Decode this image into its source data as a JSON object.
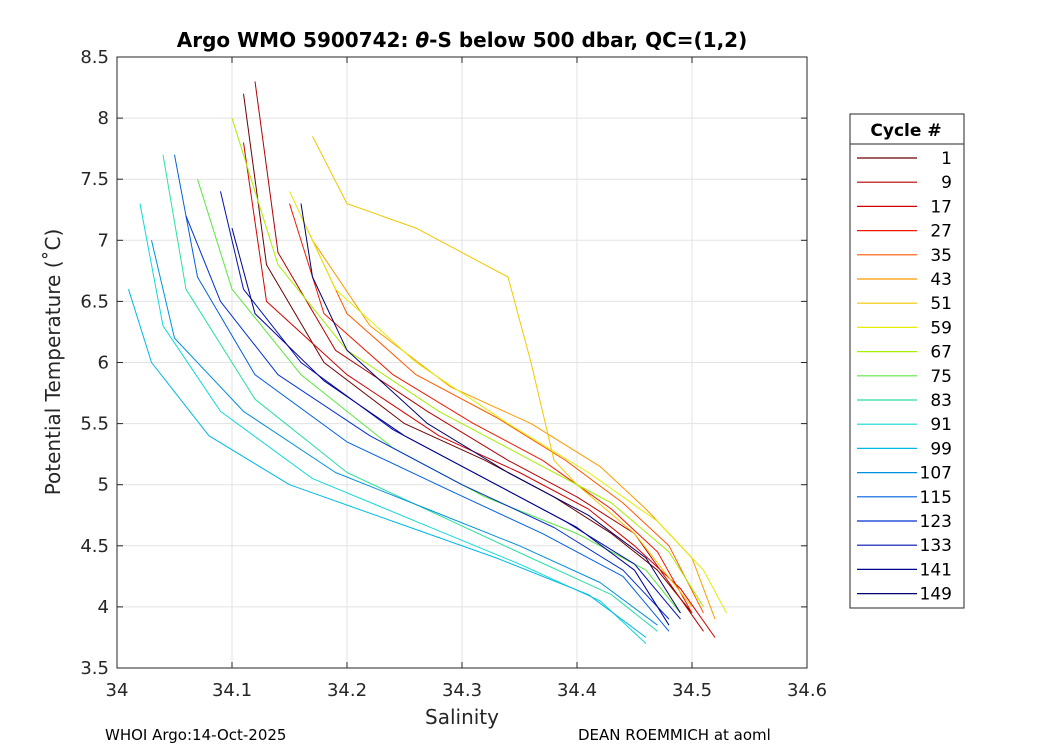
{
  "chart_data": {
    "type": "line",
    "title_prefix": "Argo WMO 5900742: ",
    "title_theta": "θ",
    "title_suffix": "-S below 500 dbar,  QC=(1,2)",
    "xlabel": "Salinity",
    "ylabel": "Potential Temperature (˚C)",
    "xlim": [
      34.0,
      34.6
    ],
    "ylim": [
      3.5,
      8.5
    ],
    "xticks": [
      "34",
      "34.1",
      "34.2",
      "34.3",
      "34.4",
      "34.5",
      "34.6"
    ],
    "yticks": [
      "3.5",
      "4",
      "4.5",
      "5",
      "5.5",
      "6",
      "6.5",
      "7",
      "7.5",
      "8",
      "8.5"
    ],
    "grid": true,
    "legend_position": "right",
    "legend_title": "Cycle #",
    "legend_entries": [
      {
        "label": "1",
        "color": "#6e0000"
      },
      {
        "label": "9",
        "color": "#b40000"
      },
      {
        "label": "17",
        "color": "#d60000"
      },
      {
        "label": "27",
        "color": "#ee1a00"
      },
      {
        "label": "35",
        "color": "#ff5a00"
      },
      {
        "label": "43",
        "color": "#ff9900"
      },
      {
        "label": "51",
        "color": "#f0c800"
      },
      {
        "label": "59",
        "color": "#e0f000"
      },
      {
        "label": "67",
        "color": "#a8ee00"
      },
      {
        "label": "75",
        "color": "#5ae840"
      },
      {
        "label": "83",
        "color": "#2ae0a0"
      },
      {
        "label": "91",
        "color": "#10d8d8"
      },
      {
        "label": "99",
        "color": "#00b8e8"
      },
      {
        "label": "107",
        "color": "#0090e0"
      },
      {
        "label": "115",
        "color": "#0060e0"
      },
      {
        "label": "123",
        "color": "#0030d0"
      },
      {
        "label": "133",
        "color": "#0010b0"
      },
      {
        "label": "141",
        "color": "#000090"
      },
      {
        "label": "149",
        "color": "#00006e"
      }
    ],
    "series": [
      {
        "name": "1",
        "color": "#6e0000",
        "x": [
          34.11,
          34.13,
          34.18,
          34.25,
          34.32,
          34.38,
          34.43,
          34.47,
          34.5
        ],
        "y": [
          8.2,
          6.8,
          6.0,
          5.5,
          5.2,
          4.9,
          4.6,
          4.3,
          3.95
        ]
      },
      {
        "name": "9",
        "color": "#b40000",
        "x": [
          34.12,
          34.14,
          34.19,
          34.27,
          34.34,
          34.4,
          34.45,
          34.48,
          34.51
        ],
        "y": [
          8.3,
          6.9,
          6.1,
          5.6,
          5.2,
          4.9,
          4.6,
          4.2,
          3.8
        ]
      },
      {
        "name": "17",
        "color": "#d60000",
        "x": [
          34.11,
          34.13,
          34.2,
          34.28,
          34.35,
          34.41,
          34.45,
          34.49,
          34.52
        ],
        "y": [
          7.8,
          6.5,
          5.9,
          5.4,
          5.1,
          4.8,
          4.5,
          4.15,
          3.75
        ]
      },
      {
        "name": "27",
        "color": "#ee1a00",
        "x": [
          34.15,
          34.18,
          34.24,
          34.31,
          34.37,
          34.43,
          34.47,
          34.5
        ],
        "y": [
          7.3,
          6.4,
          5.9,
          5.5,
          5.2,
          4.8,
          4.45,
          3.95
        ]
      },
      {
        "name": "35",
        "color": "#ff5a00",
        "x": [
          34.16,
          34.2,
          34.26,
          34.33,
          34.39,
          34.44,
          34.48,
          34.51
        ],
        "y": [
          7.2,
          6.4,
          5.9,
          5.55,
          5.2,
          4.85,
          4.5,
          3.95
        ]
      },
      {
        "name": "43",
        "color": "#ff9900",
        "x": [
          34.17,
          34.22,
          34.29,
          34.36,
          34.42,
          34.46,
          34.5,
          34.52
        ],
        "y": [
          7.0,
          6.3,
          5.8,
          5.5,
          5.15,
          4.8,
          4.4,
          3.9
        ]
      },
      {
        "name": "51",
        "color": "#f0c800",
        "x": [
          34.17,
          34.2,
          34.26,
          34.34,
          34.36,
          34.37,
          34.38,
          34.4,
          34.45,
          34.5
        ],
        "y": [
          7.85,
          7.3,
          7.1,
          6.7,
          6.0,
          5.6,
          5.2,
          5.0,
          4.6,
          4.0
        ]
      },
      {
        "name": "59",
        "color": "#e0f000",
        "x": [
          34.15,
          34.19,
          34.26,
          34.34,
          34.41,
          34.47,
          34.51,
          34.53
        ],
        "y": [
          7.4,
          6.6,
          6.0,
          5.5,
          5.1,
          4.7,
          4.3,
          3.95
        ]
      },
      {
        "name": "67",
        "color": "#a8ee00",
        "x": [
          34.1,
          34.14,
          34.2,
          34.28,
          34.36,
          34.43,
          34.48,
          34.51
        ],
        "y": [
          8.0,
          6.8,
          6.1,
          5.6,
          5.2,
          4.85,
          4.45,
          4.0
        ]
      },
      {
        "name": "75",
        "color": "#5ae840",
        "x": [
          34.07,
          34.1,
          34.16,
          34.24,
          34.32,
          34.4,
          34.46,
          34.49
        ],
        "y": [
          7.5,
          6.6,
          5.9,
          5.3,
          4.9,
          4.6,
          4.3,
          3.95
        ]
      },
      {
        "name": "83",
        "color": "#2ae0a0",
        "x": [
          34.04,
          34.06,
          34.12,
          34.2,
          34.28,
          34.36,
          34.43,
          34.47
        ],
        "y": [
          7.7,
          6.6,
          5.7,
          5.1,
          4.75,
          4.4,
          4.1,
          3.8
        ]
      },
      {
        "name": "91",
        "color": "#10d8d8",
        "x": [
          34.02,
          34.04,
          34.09,
          34.17,
          34.26,
          34.35,
          34.42,
          34.46
        ],
        "y": [
          7.3,
          6.3,
          5.6,
          5.05,
          4.7,
          4.35,
          4.05,
          3.7
        ]
      },
      {
        "name": "99",
        "color": "#00b8e8",
        "x": [
          34.01,
          34.03,
          34.08,
          34.15,
          34.24,
          34.33,
          34.41,
          34.46
        ],
        "y": [
          6.6,
          6.0,
          5.4,
          5.0,
          4.7,
          4.4,
          4.1,
          3.75
        ]
      },
      {
        "name": "107",
        "color": "#0090e0",
        "x": [
          34.03,
          34.05,
          34.11,
          34.19,
          34.27,
          34.35,
          34.42,
          34.47
        ],
        "y": [
          7.0,
          6.2,
          5.6,
          5.1,
          4.8,
          4.5,
          4.2,
          3.85
        ]
      },
      {
        "name": "115",
        "color": "#0060e0",
        "x": [
          34.05,
          34.07,
          34.12,
          34.2,
          34.29,
          34.37,
          34.44,
          34.48
        ],
        "y": [
          7.7,
          6.7,
          5.9,
          5.35,
          4.95,
          4.6,
          4.25,
          3.8
        ]
      },
      {
        "name": "123",
        "color": "#0030d0",
        "x": [
          34.06,
          34.09,
          34.14,
          34.22,
          34.3,
          34.38,
          34.44,
          34.48
        ],
        "y": [
          7.2,
          6.5,
          5.9,
          5.4,
          5.0,
          4.65,
          4.3,
          3.9
        ]
      },
      {
        "name": "133",
        "color": "#0010b0",
        "x": [
          34.09,
          34.11,
          34.16,
          34.24,
          34.32,
          34.39,
          34.45,
          34.49
        ],
        "y": [
          7.4,
          6.6,
          6.0,
          5.45,
          5.05,
          4.7,
          4.35,
          3.9
        ]
      },
      {
        "name": "141",
        "color": "#000090",
        "x": [
          34.1,
          34.12,
          34.18,
          34.25,
          34.33,
          34.4,
          34.45,
          34.48
        ],
        "y": [
          7.1,
          6.4,
          5.85,
          5.4,
          5.0,
          4.65,
          4.3,
          3.85
        ]
      },
      {
        "name": "149",
        "color": "#00006e",
        "x": [
          34.16,
          34.17,
          34.2,
          34.27,
          34.34,
          34.41,
          34.46,
          34.49
        ],
        "y": [
          7.3,
          6.7,
          6.1,
          5.5,
          5.1,
          4.75,
          4.4,
          3.95
        ]
      }
    ]
  },
  "footer": {
    "left": "WHOI Argo:14-Oct-2025",
    "right": "DEAN ROEMMICH at aoml"
  }
}
